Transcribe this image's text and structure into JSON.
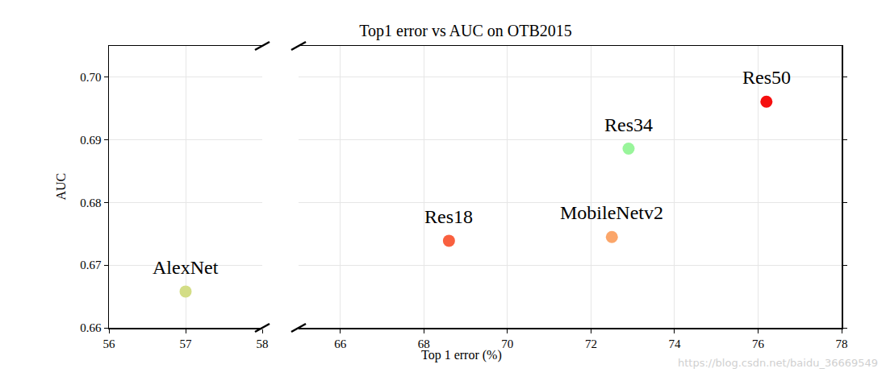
{
  "chart_data": {
    "type": "scatter",
    "title": "Top1 error vs AUC on OTB2015",
    "x_label": "Top 1 error (%)",
    "y_label": "AUC",
    "xlim": [
      [
        56,
        58
      ],
      [
        65,
        78
      ]
    ],
    "xticks": [
      [
        56,
        57,
        58
      ],
      [
        66,
        68,
        70,
        72,
        74,
        76,
        78
      ]
    ],
    "ylim": [
      0.66,
      0.705
    ],
    "yticks": [
      {
        "value": 0.66,
        "label": "0.66"
      },
      {
        "value": 0.67,
        "label": "0.67"
      },
      {
        "value": 0.68,
        "label": "0.68"
      },
      {
        "value": 0.69,
        "label": "0.69"
      },
      {
        "value": 0.7,
        "label": "0.70"
      }
    ],
    "grid": true,
    "marker": "circle",
    "series": [
      {
        "name": "AlexNet",
        "color": "#d3dd86",
        "x": [
          57.0
        ],
        "values": [
          0.6658
        ]
      },
      {
        "name": "Res18",
        "color": "#f9603f",
        "x": [
          68.6
        ],
        "values": [
          0.6739
        ]
      },
      {
        "name": "MobileNetv2",
        "color": "#fba66a",
        "x": [
          72.5
        ],
        "values": [
          0.6745
        ]
      },
      {
        "name": "Res34",
        "color": "#99f59b",
        "x": [
          72.9
        ],
        "values": [
          0.6886
        ]
      },
      {
        "name": "Res50",
        "color": "#f50f0f",
        "x": [
          76.2
        ],
        "values": [
          0.6961
        ]
      }
    ],
    "annotations": [
      "https://blog.csdn.net/baidu_36669549"
    ]
  }
}
